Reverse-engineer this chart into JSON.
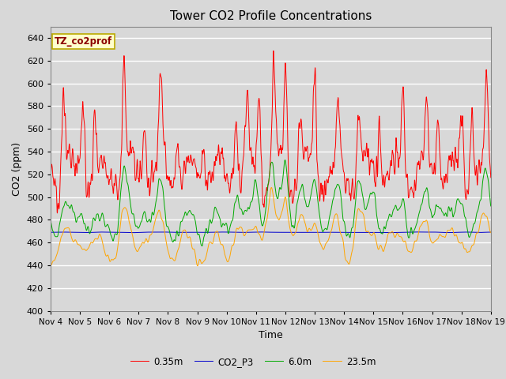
{
  "title": "Tower CO2 Profile Concentrations",
  "xlabel": "Time",
  "ylabel": "CO2 (ppm)",
  "ylim": [
    400,
    650
  ],
  "yticks": [
    400,
    420,
    440,
    460,
    480,
    500,
    520,
    540,
    560,
    580,
    600,
    620,
    640
  ],
  "legend_label": "TZ_co2prof",
  "series_labels": [
    "0.35m",
    "CO2_P3",
    "6.0m",
    "23.5m"
  ],
  "series_colors": [
    "#ff0000",
    "#0000cc",
    "#00aa00",
    "#ffa500"
  ],
  "fig_bg": "#d8d8d8",
  "axes_bg": "#d8d8d8",
  "title_fontsize": 11,
  "axis_fontsize": 9,
  "tick_fontsize": 8,
  "n_points": 2160,
  "x_start": 4,
  "x_end": 19,
  "xtick_positions": [
    4,
    5,
    6,
    7,
    8,
    9,
    10,
    11,
    12,
    13,
    14,
    15,
    16,
    17,
    18,
    19
  ],
  "xtick_labels": [
    "Nov 4",
    "Nov 5",
    "Nov 6",
    "Nov 7",
    "Nov 8",
    "Nov 9",
    "Nov 10",
    "Nov 11",
    "Nov 12",
    "Nov 13",
    "Nov 14",
    "Nov 15",
    "Nov 16",
    "Nov 17",
    "Nov 18",
    "Nov 19"
  ]
}
